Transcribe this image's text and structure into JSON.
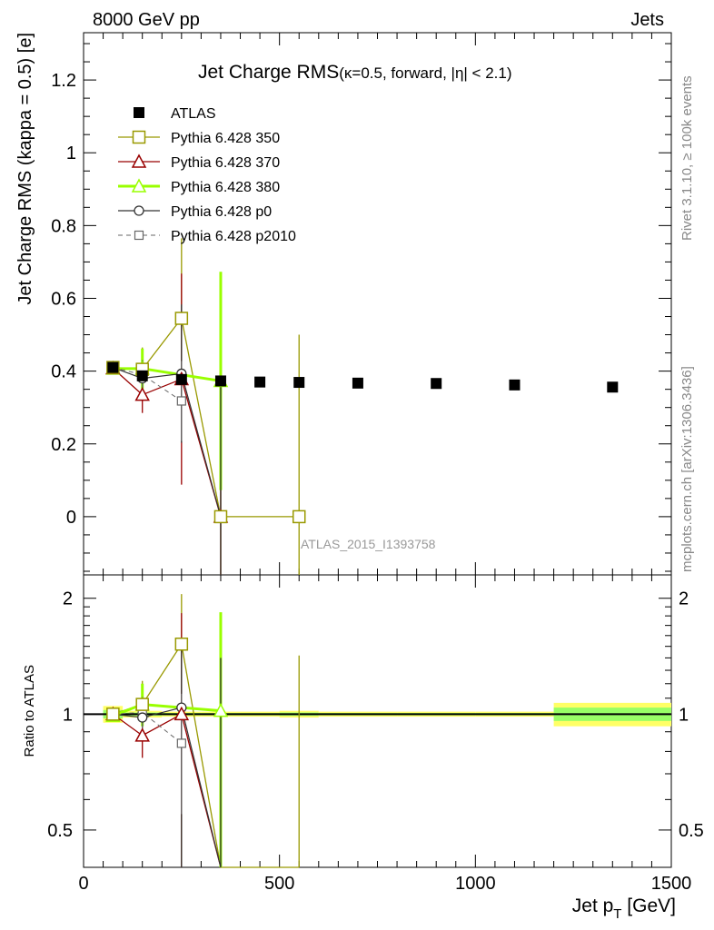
{
  "header": {
    "left": "8000 GeV pp",
    "right": "Jets"
  },
  "side_labels": {
    "rivet": "Rivet 3.1.10, ≥ 100k events",
    "mcplots": "mcplots.cern.ch [arXiv:1306.3436]"
  },
  "watermark": "ATLAS_2015_I1393758",
  "colors": {
    "atlas": "#000000",
    "p350": "#999900",
    "p370": "#990000",
    "p380": "#99ff00",
    "p0": "#333333",
    "p2010": "#666666",
    "band_outer": "#ffff66",
    "band_inner": "#99ff66"
  },
  "chart_data": [
    {
      "type": "scatter",
      "title_main": "Jet Charge RMS",
      "title_sub": "(κ=0.5, forward, |η| < 2.1)",
      "ylabel": "Jet Charge RMS (kappa = 0.5) [e]",
      "xlim": [
        0,
        1500
      ],
      "ylim": [
        -0.16,
        1.33
      ],
      "x_ticks": [
        0,
        500,
        1000,
        1500
      ],
      "y_ticks": [
        "0",
        "0.2",
        "0.4",
        "0.6",
        "0.8",
        "1",
        "1.2"
      ],
      "legend_position": "top-left",
      "series": [
        {
          "name": "ATLAS",
          "marker": "filled-square",
          "points": [
            {
              "x": 75,
              "y": 0.41
            },
            {
              "x": 150,
              "y": 0.387
            },
            {
              "x": 250,
              "y": 0.377
            },
            {
              "x": 350,
              "y": 0.373
            },
            {
              "x": 450,
              "y": 0.37
            },
            {
              "x": 550,
              "y": 0.369
            },
            {
              "x": 700,
              "y": 0.367
            },
            {
              "x": 900,
              "y": 0.366
            },
            {
              "x": 1100,
              "y": 0.362
            },
            {
              "x": 1350,
              "y": 0.356
            }
          ]
        },
        {
          "name": "Pythia 6.428 350",
          "marker": "open-square",
          "points": [
            {
              "x": 75,
              "y": 0.41,
              "err": 0.01
            },
            {
              "x": 150,
              "y": 0.405,
              "err": 0.06
            },
            {
              "x": 250,
              "y": 0.545,
              "err": 0.22
            },
            {
              "x": 350,
              "y": 0.0,
              "err": 0.35
            },
            {
              "x": 550,
              "y": 0.0,
              "err": 0.5
            }
          ]
        },
        {
          "name": "Pythia 6.428 370",
          "marker": "open-triangle",
          "points": [
            {
              "x": 75,
              "y": 0.408,
              "err": 0.012
            },
            {
              "x": 150,
              "y": 0.335,
              "err": 0.05
            },
            {
              "x": 250,
              "y": 0.378,
              "err": 0.29
            },
            {
              "x": 350,
              "y": 0.0,
              "err": 0.3
            }
          ]
        },
        {
          "name": "Pythia 6.428 380",
          "marker": "open-triangle",
          "points": [
            {
              "x": 75,
              "y": 0.407,
              "err": 0.012
            },
            {
              "x": 150,
              "y": 0.407,
              "err": 0.055
            },
            {
              "x": 350,
              "y": 0.373,
              "err": 0.3
            }
          ]
        },
        {
          "name": "Pythia 6.428 p0",
          "marker": "open-circle",
          "points": [
            {
              "x": 75,
              "y": 0.41,
              "err": 0.01
            },
            {
              "x": 150,
              "y": 0.38,
              "err": 0.04
            },
            {
              "x": 250,
              "y": 0.393,
              "err": 0.19
            },
            {
              "x": 350,
              "y": 0.0,
              "err": 0.37
            }
          ]
        },
        {
          "name": "Pythia 6.428 p2010",
          "marker": "open-square-small",
          "points": [
            {
              "x": 75,
              "y": 0.41,
              "err": 0.01
            },
            {
              "x": 150,
              "y": 0.39,
              "err": 0.04
            },
            {
              "x": 250,
              "y": 0.318,
              "err": 0.11
            }
          ]
        }
      ]
    },
    {
      "type": "scatter",
      "ylabel": "Ratio to ATLAS",
      "xlabel": "Jet p_T [GeV]",
      "xlabel_main": "Jet p",
      "xlabel_sub": "T",
      "xlabel_unit": " [GeV]",
      "xlim": [
        0,
        1500
      ],
      "ylim_log": [
        0.4,
        2.3
      ],
      "x_ticks": [
        "0",
        "500",
        "1000",
        "1500"
      ],
      "y_ticks": [
        "0.5",
        "1",
        "2"
      ],
      "bands": [
        {
          "x_from": 50,
          "x_to": 100,
          "outer": 0.05,
          "inner": 0.025
        },
        {
          "x_from": 100,
          "x_to": 200,
          "outer": 0.02,
          "inner": 0.01
        },
        {
          "x_from": 200,
          "x_to": 300,
          "outer": 0.015,
          "inner": 0.007
        },
        {
          "x_from": 300,
          "x_to": 400,
          "outer": 0.015,
          "inner": 0.007
        },
        {
          "x_from": 400,
          "x_to": 500,
          "outer": 0.015,
          "inner": 0.007
        },
        {
          "x_from": 500,
          "x_to": 600,
          "outer": 0.02,
          "inner": 0.01
        },
        {
          "x_from": 600,
          "x_to": 800,
          "outer": 0.015,
          "inner": 0.007
        },
        {
          "x_from": 800,
          "x_to": 1000,
          "outer": 0.015,
          "inner": 0.007
        },
        {
          "x_from": 1000,
          "x_to": 1200,
          "outer": 0.015,
          "inner": 0.007
        },
        {
          "x_from": 1200,
          "x_to": 1500,
          "outer": 0.07,
          "inner": 0.04
        }
      ],
      "series": [
        {
          "name": "Pythia 6.428 350",
          "points": [
            {
              "x": 75,
              "y": 1.0,
              "lo": 0.97,
              "hi": 1.03
            },
            {
              "x": 150,
              "y": 1.06,
              "lo": 0.93,
              "hi": 1.22
            },
            {
              "x": 250,
              "y": 1.52,
              "lo": 0.3,
              "hi": 2.05
            },
            {
              "x": 350,
              "y": 0.05,
              "lo": 0.05,
              "hi": 1.42
            },
            {
              "x": 550,
              "y": 0.05,
              "lo": 0.37,
              "hi": 1.42
            }
          ]
        },
        {
          "name": "Pythia 6.428 370",
          "points": [
            {
              "x": 75,
              "y": 1.0,
              "lo": 0.97,
              "hi": 1.03
            },
            {
              "x": 150,
              "y": 0.88,
              "lo": 0.77,
              "hi": 1.0
            },
            {
              "x": 250,
              "y": 1.0,
              "lo": 0.3,
              "hi": 1.83
            },
            {
              "x": 350,
              "y": 0.05,
              "lo": 0.05,
              "hi": 0.8
            }
          ]
        },
        {
          "name": "Pythia 6.428 380",
          "points": [
            {
              "x": 75,
              "y": 0.99,
              "lo": 0.96,
              "hi": 1.03
            },
            {
              "x": 150,
              "y": 1.06,
              "lo": 0.93,
              "hi": 1.2
            },
            {
              "x": 350,
              "y": 1.02,
              "lo": 0.3,
              "hi": 1.84
            }
          ]
        },
        {
          "name": "Pythia 6.428 p0",
          "points": [
            {
              "x": 75,
              "y": 1.0,
              "lo": 0.97,
              "hi": 1.03
            },
            {
              "x": 150,
              "y": 0.98,
              "lo": 0.88,
              "hi": 1.08
            },
            {
              "x": 250,
              "y": 1.04,
              "lo": 0.4,
              "hi": 1.54
            },
            {
              "x": 350,
              "y": 0.05,
              "lo": 0.05,
              "hi": 1.4
            }
          ]
        },
        {
          "name": "Pythia 6.428 p2010",
          "points": [
            {
              "x": 75,
              "y": 1.0,
              "lo": 0.97,
              "hi": 1.03
            },
            {
              "x": 150,
              "y": 1.01,
              "lo": 0.9,
              "hi": 1.11
            },
            {
              "x": 250,
              "y": 0.84,
              "lo": 0.55,
              "hi": 1.13
            }
          ]
        }
      ]
    }
  ]
}
